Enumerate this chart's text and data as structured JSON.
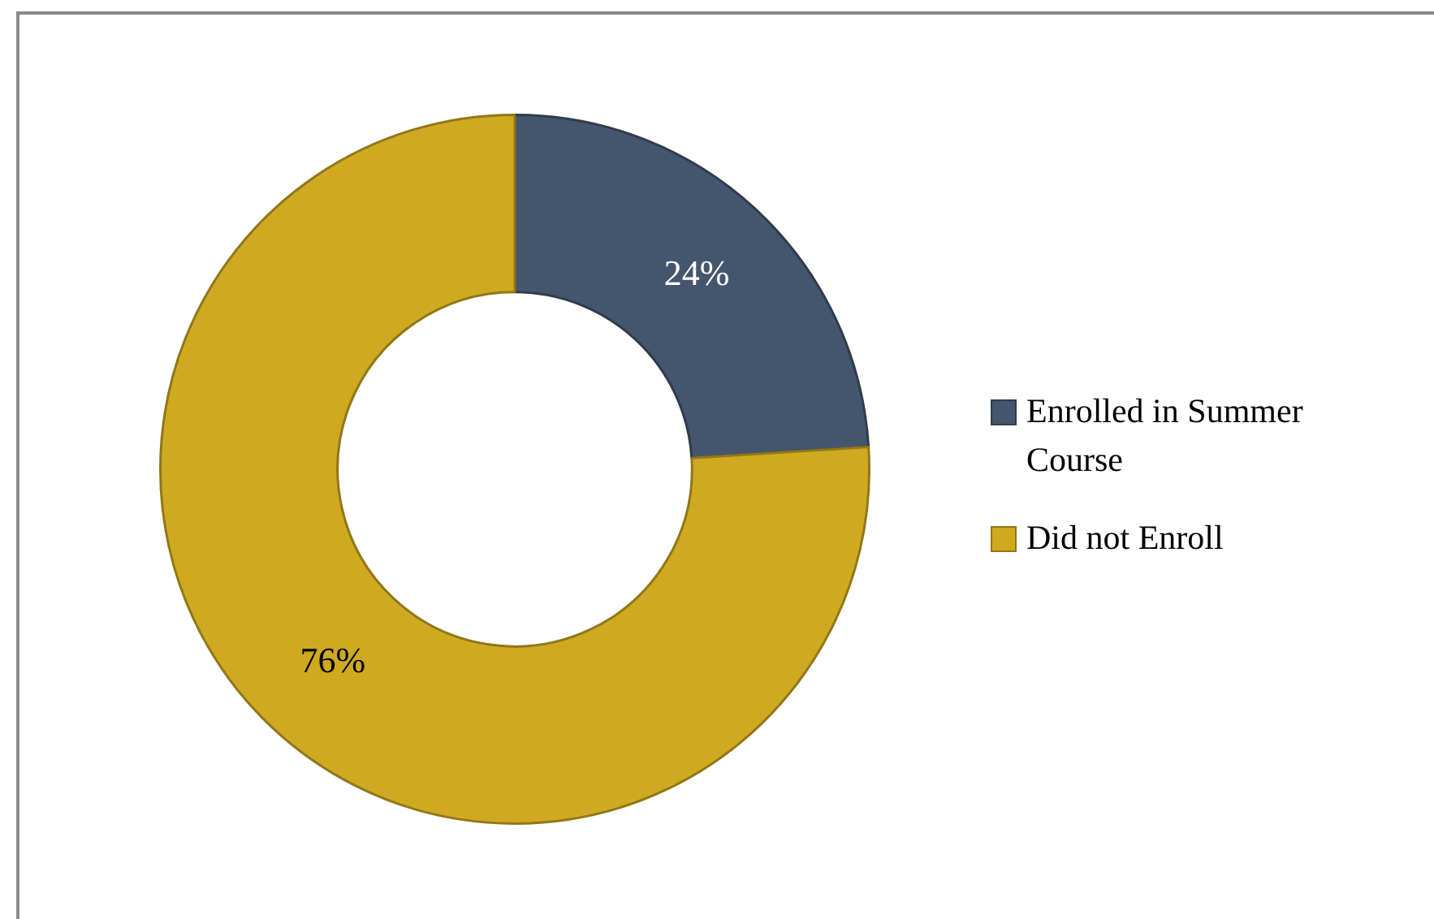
{
  "chart_data": {
    "type": "donut",
    "categories": [
      "Enrolled in Summer Course",
      "Did not Enroll"
    ],
    "values": [
      24,
      76
    ],
    "colors": [
      "#44566e",
      "#cfaa21"
    ],
    "value_labels": [
      "24%",
      "76%"
    ],
    "legend": "right"
  }
}
